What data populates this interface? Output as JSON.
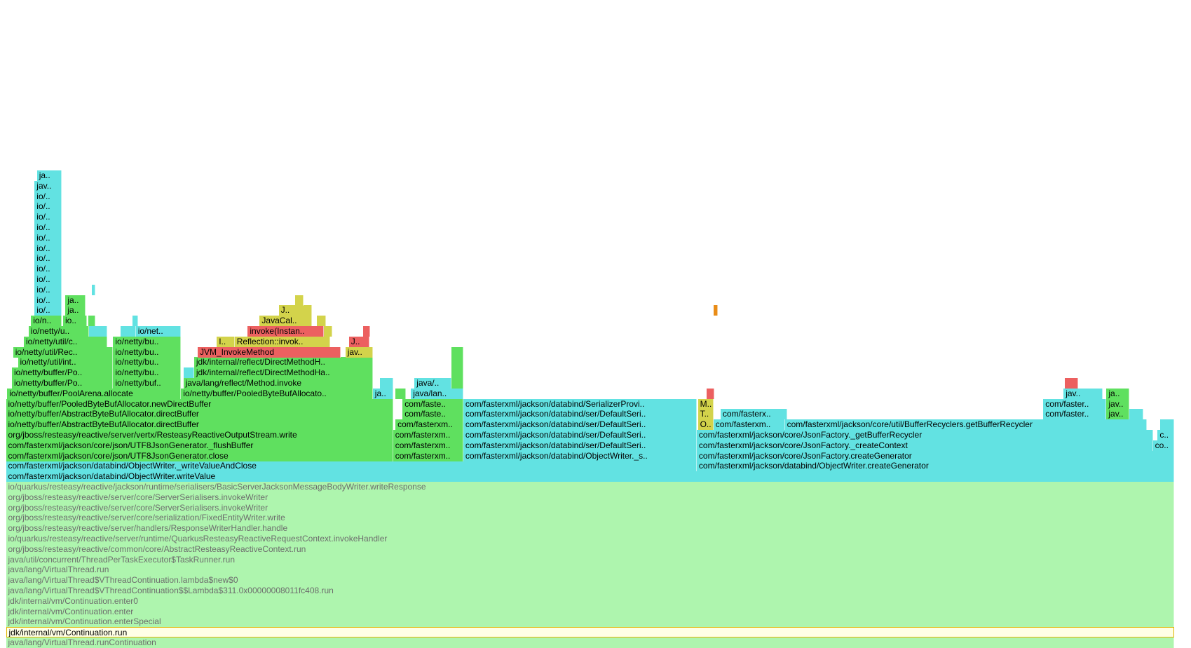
{
  "colors": {
    "green": "#5fe05f",
    "cyan": "#62e2e2",
    "yellow": "#d3d34b",
    "red": "#ec6060",
    "orange": "#e98c17",
    "pale": "#aef5ae",
    "highlight": "#ffffe6"
  },
  "frames": [
    {
      "row": 0,
      "x0": 0.5,
      "x1": 98.6,
      "color": "pale",
      "label": "java/lang/VirtualThread.runContinuation"
    },
    {
      "row": 1,
      "x0": 0.5,
      "x1": 98.6,
      "color": "highlight",
      "label": "jdk/internal/vm/Continuation.run"
    },
    {
      "row": 2,
      "x0": 0.5,
      "x1": 98.6,
      "color": "pale",
      "label": "jdk/internal/vm/Continuation.enterSpecial"
    },
    {
      "row": 3,
      "x0": 0.5,
      "x1": 98.6,
      "color": "pale",
      "label": "jdk/internal/vm/Continuation.enter"
    },
    {
      "row": 4,
      "x0": 0.5,
      "x1": 98.6,
      "color": "pale",
      "label": "jdk/internal/vm/Continuation.enter0"
    },
    {
      "row": 5,
      "x0": 0.5,
      "x1": 98.6,
      "color": "pale",
      "label": "java/lang/VirtualThread$VThreadContinuation$$Lambda$311.0x00000008011fc408.run"
    },
    {
      "row": 6,
      "x0": 0.5,
      "x1": 98.6,
      "color": "pale",
      "label": "java/lang/VirtualThread$VThreadContinuation.lambda$new$0"
    },
    {
      "row": 7,
      "x0": 0.5,
      "x1": 98.6,
      "color": "pale",
      "label": "java/lang/VirtualThread.run"
    },
    {
      "row": 8,
      "x0": 0.5,
      "x1": 98.6,
      "color": "pale",
      "label": "java/util/concurrent/ThreadPerTaskExecutor$TaskRunner.run"
    },
    {
      "row": 9,
      "x0": 0.5,
      "x1": 98.6,
      "color": "pale",
      "label": "org/jboss/resteasy/reactive/common/core/AbstractResteasyReactiveContext.run"
    },
    {
      "row": 10,
      "x0": 0.5,
      "x1": 98.6,
      "color": "pale",
      "label": "io/quarkus/resteasy/reactive/server/runtime/QuarkusResteasyReactiveRequestContext.invokeHandler"
    },
    {
      "row": 11,
      "x0": 0.5,
      "x1": 98.6,
      "color": "pale",
      "label": "org/jboss/resteasy/reactive/server/handlers/ResponseWriterHandler.handle"
    },
    {
      "row": 12,
      "x0": 0.5,
      "x1": 98.6,
      "color": "pale",
      "label": "org/jboss/resteasy/reactive/server/core/serialization/FixedEntityWriter.write"
    },
    {
      "row": 13,
      "x0": 0.5,
      "x1": 98.6,
      "color": "pale",
      "label": "org/jboss/resteasy/reactive/server/core/ServerSerialisers.invokeWriter"
    },
    {
      "row": 14,
      "x0": 0.5,
      "x1": 98.6,
      "color": "pale",
      "label": "org/jboss/resteasy/reactive/server/core/ServerSerialisers.invokeWriter"
    },
    {
      "row": 15,
      "x0": 0.5,
      "x1": 98.6,
      "color": "pale",
      "label": "io/quarkus/resteasy/reactive/jackson/runtime/serialisers/BasicServerJacksonMessageBodyWriter.writeResponse"
    },
    {
      "row": 16,
      "x0": 0.5,
      "x1": 98.6,
      "color": "cyan",
      "label": "com/fasterxml/jackson/databind/ObjectWriter.writeValue"
    },
    {
      "row": 17,
      "x0": 0.5,
      "x1": 58.5,
      "color": "cyan",
      "label": "com/fasterxml/jackson/databind/ObjectWriter._writeValueAndClose"
    },
    {
      "row": 17,
      "x0": 58.5,
      "x1": 98.6,
      "color": "cyan",
      "label": "com/fasterxml/jackson/databind/ObjectWriter.createGenerator"
    },
    {
      "row": 18,
      "x0": 0.5,
      "x1": 33.0,
      "color": "green",
      "label": "com/fasterxml/jackson/core/json/UTF8JsonGenerator.close"
    },
    {
      "row": 18,
      "x0": 33.0,
      "x1": 38.9,
      "color": "green",
      "label": "com/fasterxm.."
    },
    {
      "row": 18,
      "x0": 38.9,
      "x1": 58.5,
      "color": "cyan",
      "label": "com/fasterxml/jackson/databind/ObjectWriter._s.."
    },
    {
      "row": 18,
      "x0": 58.5,
      "x1": 98.6,
      "color": "cyan",
      "label": "com/fasterxml/jackson/core/JsonFactory.createGenerator"
    },
    {
      "row": 19,
      "x0": 0.5,
      "x1": 33.0,
      "color": "green",
      "label": "com/fasterxml/jackson/core/json/UTF8JsonGenerator._flushBuffer"
    },
    {
      "row": 19,
      "x0": 33.0,
      "x1": 38.9,
      "color": "green",
      "label": "com/fasterxm.."
    },
    {
      "row": 19,
      "x0": 38.9,
      "x1": 58.5,
      "color": "cyan",
      "label": "com/fasterxml/jackson/databind/ser/DefaultSeri.."
    },
    {
      "row": 19,
      "x0": 58.5,
      "x1": 96.8,
      "color": "cyan",
      "label": "com/fasterxml/jackson/core/JsonFactory._createContext"
    },
    {
      "row": 19,
      "x0": 96.8,
      "x1": 98.6,
      "color": "cyan",
      "label": "co.."
    },
    {
      "row": 20,
      "x0": 0.5,
      "x1": 33.0,
      "color": "green",
      "label": "org/jboss/resteasy/reactive/server/vertx/ResteasyReactiveOutputStream.write"
    },
    {
      "row": 20,
      "x0": 33.0,
      "x1": 38.9,
      "color": "green",
      "label": "com/fasterxm.."
    },
    {
      "row": 20,
      "x0": 38.9,
      "x1": 58.5,
      "color": "cyan",
      "label": "com/fasterxml/jackson/databind/ser/DefaultSeri.."
    },
    {
      "row": 20,
      "x0": 58.5,
      "x1": 96.8,
      "color": "cyan",
      "label": "com/fasterxml/jackson/core/JsonFactory._getBufferRecycler"
    },
    {
      "row": 20,
      "x0": 97.2,
      "x1": 98.6,
      "color": "cyan",
      "label": "c.."
    },
    {
      "row": 21,
      "x0": 0.5,
      "x1": 33.0,
      "color": "green",
      "label": "io/netty/buffer/AbstractByteBufAllocator.directBuffer"
    },
    {
      "row": 21,
      "x0": 33.2,
      "x1": 38.9,
      "color": "green",
      "label": "com/fasterxm.."
    },
    {
      "row": 21,
      "x0": 38.9,
      "x1": 58.5,
      "color": "cyan",
      "label": "com/fasterxml/jackson/databind/ser/DefaultSeri.."
    },
    {
      "row": 21,
      "x0": 58.6,
      "x1": 59.9,
      "color": "yellow",
      "label": "O.."
    },
    {
      "row": 21,
      "x0": 59.9,
      "x1": 65.9,
      "color": "cyan",
      "label": "com/fasterxm.."
    },
    {
      "row": 21,
      "x0": 65.9,
      "x1": 96.3,
      "color": "cyan",
      "label": "com/fasterxml/jackson/core/util/BufferRecyclers.getBufferRecycler"
    },
    {
      "row": 21,
      "x0": 97.4,
      "x1": 98.6,
      "color": "cyan",
      "label": ""
    },
    {
      "row": 22,
      "x0": 0.5,
      "x1": 33.0,
      "color": "green",
      "label": "io/netty/buffer/AbstractByteBufAllocator.directBuffer"
    },
    {
      "row": 22,
      "x0": 33.8,
      "x1": 38.9,
      "color": "green",
      "label": "com/faste.."
    },
    {
      "row": 22,
      "x0": 38.9,
      "x1": 58.5,
      "color": "cyan",
      "label": "com/fasterxml/jackson/databind/ser/DefaultSeri.."
    },
    {
      "row": 22,
      "x0": 58.6,
      "x1": 59.9,
      "color": "yellow",
      "label": "T.."
    },
    {
      "row": 22,
      "x0": 60.5,
      "x1": 66.1,
      "color": "cyan",
      "label": "com/fasterx.."
    },
    {
      "row": 22,
      "x0": 87.6,
      "x1": 92.9,
      "color": "cyan",
      "label": "com/faster.."
    },
    {
      "row": 22,
      "x0": 92.9,
      "x1": 94.8,
      "color": "green",
      "label": "jav.."
    },
    {
      "row": 22,
      "x0": 94.8,
      "x1": 96.0,
      "color": "cyan",
      "label": ""
    },
    {
      "row": 23,
      "x0": 0.5,
      "x1": 33.0,
      "color": "green",
      "label": "io/netty/buffer/PooledByteBufAllocator.newDirectBuffer"
    },
    {
      "row": 23,
      "x0": 33.8,
      "x1": 38.9,
      "color": "green",
      "label": "com/faste.."
    },
    {
      "row": 23,
      "x0": 38.9,
      "x1": 58.5,
      "color": "cyan",
      "label": "com/fasterxml/jackson/databind/SerializerProvi.."
    },
    {
      "row": 23,
      "x0": 58.6,
      "x1": 59.9,
      "color": "yellow",
      "label": "M.."
    },
    {
      "row": 23,
      "x0": 87.6,
      "x1": 92.9,
      "color": "cyan",
      "label": "com/faster.."
    },
    {
      "row": 23,
      "x0": 92.9,
      "x1": 94.8,
      "color": "green",
      "label": "jav.."
    },
    {
      "row": 24,
      "x0": 0.6,
      "x1": 15.2,
      "color": "green",
      "label": "io/netty/buffer/PoolArena.allocate"
    },
    {
      "row": 24,
      "x0": 15.2,
      "x1": 31.3,
      "color": "green",
      "label": "io/netty/buffer/PooledByteBufAllocato.."
    },
    {
      "row": 24,
      "x0": 31.3,
      "x1": 33.0,
      "color": "cyan",
      "label": "ja.."
    },
    {
      "row": 24,
      "x0": 33.2,
      "x1": 34.1,
      "color": "green",
      "label": ""
    },
    {
      "row": 24,
      "x0": 34.5,
      "x1": 38.9,
      "color": "cyan",
      "label": "java/lan.."
    },
    {
      "row": 24,
      "x0": 59.3,
      "x1": 60.0,
      "color": "red",
      "label": ""
    },
    {
      "row": 24,
      "x0": 89.3,
      "x1": 92.6,
      "color": "cyan",
      "label": "jav.."
    },
    {
      "row": 24,
      "x0": 92.9,
      "x1": 94.8,
      "color": "green",
      "label": "ja.."
    },
    {
      "row": 25,
      "x0": 1.0,
      "x1": 9.5,
      "color": "green",
      "label": "io/netty/buffer/Po.."
    },
    {
      "row": 25,
      "x0": 9.5,
      "x1": 15.2,
      "color": "green",
      "label": "io/netty/buf.."
    },
    {
      "row": 25,
      "x0": 15.4,
      "x1": 31.3,
      "color": "green",
      "label": "java/lang/reflect/Method.invoke"
    },
    {
      "row": 25,
      "x0": 31.9,
      "x1": 33.0,
      "color": "cyan",
      "label": ""
    },
    {
      "row": 25,
      "x0": 34.8,
      "x1": 37.9,
      "color": "cyan",
      "label": "java/.."
    },
    {
      "row": 25,
      "x0": 37.9,
      "x1": 38.9,
      "color": "green",
      "label": ""
    },
    {
      "row": 25,
      "x0": 89.4,
      "x1": 90.5,
      "color": "red",
      "label": ""
    },
    {
      "row": 26,
      "x0": 1.0,
      "x1": 9.5,
      "color": "green",
      "label": "io/netty/buffer/Po.."
    },
    {
      "row": 26,
      "x0": 9.5,
      "x1": 15.2,
      "color": "green",
      "label": "io/netty/bu.."
    },
    {
      "row": 26,
      "x0": 15.4,
      "x1": 16.3,
      "color": "cyan",
      "label": ""
    },
    {
      "row": 26,
      "x0": 16.3,
      "x1": 31.3,
      "color": "green",
      "label": "jdk/internal/reflect/DirectMethodHa.."
    },
    {
      "row": 26,
      "x0": 37.9,
      "x1": 38.9,
      "color": "green",
      "label": ""
    },
    {
      "row": 27,
      "x0": 1.5,
      "x1": 9.5,
      "color": "green",
      "label": "io/netty/util/int.."
    },
    {
      "row": 27,
      "x0": 9.5,
      "x1": 15.2,
      "color": "green",
      "label": "io/netty/bu.."
    },
    {
      "row": 27,
      "x0": 16.3,
      "x1": 31.3,
      "color": "green",
      "label": "jdk/internal/reflect/DirectMethodH.."
    },
    {
      "row": 27,
      "x0": 37.9,
      "x1": 38.9,
      "color": "green",
      "label": ""
    },
    {
      "row": 28,
      "x0": 1.1,
      "x1": 9.5,
      "color": "green",
      "label": "io/netty/util/Rec.."
    },
    {
      "row": 28,
      "x0": 9.5,
      "x1": 15.2,
      "color": "green",
      "label": "io/netty/bu.."
    },
    {
      "row": 28,
      "x0": 16.6,
      "x1": 28.6,
      "color": "red",
      "label": "JVM_InvokeMethod"
    },
    {
      "row": 28,
      "x0": 29.0,
      "x1": 31.3,
      "color": "yellow",
      "label": "jav.."
    },
    {
      "row": 28,
      "x0": 37.9,
      "x1": 38.9,
      "color": "green",
      "label": ""
    },
    {
      "row": 29,
      "x0": 2.0,
      "x1": 9.0,
      "color": "green",
      "label": "io/netty/util/c.."
    },
    {
      "row": 29,
      "x0": 9.5,
      "x1": 15.2,
      "color": "green",
      "label": "io/netty/bu.."
    },
    {
      "row": 29,
      "x0": 18.2,
      "x1": 19.7,
      "color": "yellow",
      "label": "I.."
    },
    {
      "row": 29,
      "x0": 19.7,
      "x1": 27.7,
      "color": "yellow",
      "label": "Reflection::invok.."
    },
    {
      "row": 29,
      "x0": 29.3,
      "x1": 31.0,
      "color": "red",
      "label": "J.."
    },
    {
      "row": 30,
      "x0": 2.4,
      "x1": 7.5,
      "color": "green",
      "label": "io/netty/u.."
    },
    {
      "row": 30,
      "x0": 7.5,
      "x1": 9.0,
      "color": "cyan",
      "label": ""
    },
    {
      "row": 30,
      "x0": 10.1,
      "x1": 11.4,
      "color": "cyan",
      "label": ""
    },
    {
      "row": 30,
      "x0": 11.4,
      "x1": 15.2,
      "color": "cyan",
      "label": "io/net.."
    },
    {
      "row": 30,
      "x0": 20.8,
      "x1": 27.2,
      "color": "red",
      "label": "invoke(Instan.."
    },
    {
      "row": 30,
      "x0": 27.2,
      "x1": 27.9,
      "color": "yellow",
      "label": ""
    },
    {
      "row": 30,
      "x0": 30.5,
      "x1": 31.1,
      "color": "red",
      "label": ""
    },
    {
      "row": 31,
      "x0": 2.6,
      "x1": 5.2,
      "color": "green",
      "label": "io/n.."
    },
    {
      "row": 31,
      "x0": 5.3,
      "x1": 7.3,
      "color": "green",
      "label": "io.."
    },
    {
      "row": 31,
      "x0": 7.4,
      "x1": 8.0,
      "color": "green",
      "label": ""
    },
    {
      "row": 31,
      "x0": 11.1,
      "x1": 11.6,
      "color": "cyan",
      "label": ""
    },
    {
      "row": 31,
      "x0": 21.8,
      "x1": 26.2,
      "color": "yellow",
      "label": "JavaCal.."
    },
    {
      "row": 31,
      "x0": 26.6,
      "x1": 27.4,
      "color": "yellow",
      "label": ""
    },
    {
      "row": 32,
      "x0": 2.9,
      "x1": 5.2,
      "color": "cyan",
      "label": "io/.."
    },
    {
      "row": 32,
      "x0": 5.5,
      "x1": 7.2,
      "color": "green",
      "label": "ja.."
    },
    {
      "row": 32,
      "x0": 23.4,
      "x1": 26.2,
      "color": "yellow",
      "label": "J.."
    },
    {
      "row": 32,
      "x0": 59.9,
      "x1": 60.3,
      "color": "orange",
      "label": ""
    },
    {
      "row": 33,
      "x0": 2.9,
      "x1": 5.2,
      "color": "cyan",
      "label": "io/.."
    },
    {
      "row": 33,
      "x0": 5.5,
      "x1": 7.2,
      "color": "green",
      "label": "ja.."
    },
    {
      "row": 33,
      "x0": 24.8,
      "x1": 25.5,
      "color": "yellow",
      "label": ""
    },
    {
      "row": 34,
      "x0": 2.9,
      "x1": 5.2,
      "color": "cyan",
      "label": "io/.."
    },
    {
      "row": 34,
      "x0": 7.7,
      "x1": 8.0,
      "color": "cyan",
      "label": ""
    },
    {
      "row": 35,
      "x0": 2.9,
      "x1": 5.2,
      "color": "cyan",
      "label": "io/.."
    },
    {
      "row": 36,
      "x0": 2.9,
      "x1": 5.2,
      "color": "cyan",
      "label": "io/.."
    },
    {
      "row": 37,
      "x0": 2.9,
      "x1": 5.2,
      "color": "cyan",
      "label": "io/.."
    },
    {
      "row": 38,
      "x0": 2.9,
      "x1": 5.2,
      "color": "cyan",
      "label": "io/.."
    },
    {
      "row": 39,
      "x0": 2.9,
      "x1": 5.2,
      "color": "cyan",
      "label": "io/.."
    },
    {
      "row": 40,
      "x0": 2.9,
      "x1": 5.2,
      "color": "cyan",
      "label": "io/.."
    },
    {
      "row": 41,
      "x0": 2.9,
      "x1": 5.2,
      "color": "cyan",
      "label": "io/.."
    },
    {
      "row": 42,
      "x0": 2.9,
      "x1": 5.2,
      "color": "cyan",
      "label": "io/.."
    },
    {
      "row": 43,
      "x0": 2.9,
      "x1": 5.2,
      "color": "cyan",
      "label": "io/.."
    },
    {
      "row": 44,
      "x0": 2.9,
      "x1": 5.2,
      "color": "cyan",
      "label": "jav.."
    },
    {
      "row": 45,
      "x0": 3.1,
      "x1": 5.2,
      "color": "cyan",
      "label": "ja.."
    }
  ]
}
